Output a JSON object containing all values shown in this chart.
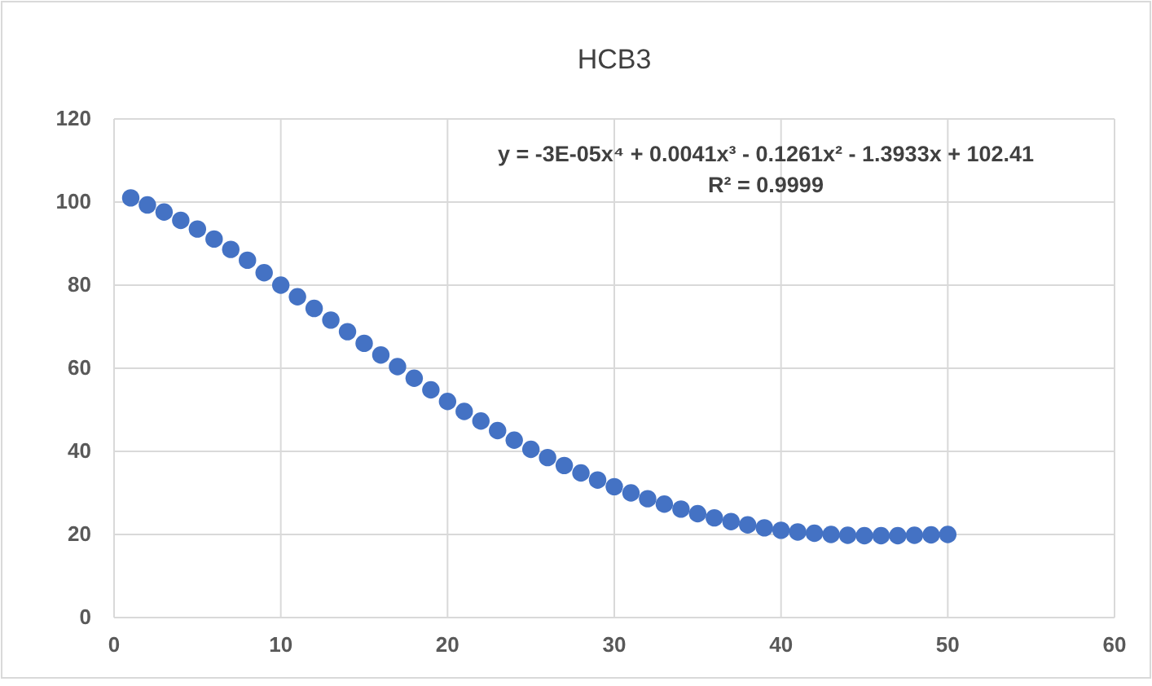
{
  "chart_data": {
    "type": "scatter",
    "title": "HCB3",
    "x": [
      1,
      2,
      3,
      4,
      5,
      6,
      7,
      8,
      9,
      10,
      11,
      12,
      13,
      14,
      15,
      16,
      17,
      18,
      19,
      20,
      21,
      22,
      23,
      24,
      25,
      26,
      27,
      28,
      29,
      30,
      31,
      32,
      33,
      34,
      35,
      36,
      37,
      38,
      39,
      40,
      41,
      42,
      43,
      44,
      45,
      46,
      47,
      48,
      49,
      50
    ],
    "series": [
      {
        "color": "#4472c4",
        "values": [
          101,
          99.3,
          97.6,
          95.6,
          93.5,
          91.1,
          88.6,
          86,
          83,
          80,
          77.2,
          74.4,
          71.6,
          68.8,
          66,
          63.2,
          60.4,
          57.6,
          54.8,
          52,
          49.6,
          47.3,
          45,
          42.7,
          40.5,
          38.5,
          36.6,
          34.8,
          33.1,
          31.5,
          30,
          28.6,
          27.3,
          26.1,
          25,
          24,
          23.1,
          22.3,
          21.6,
          21,
          20.6,
          20.3,
          20,
          19.8,
          19.7,
          19.7,
          19.7,
          19.8,
          19.9,
          20
        ]
      }
    ],
    "annotations": [
      "y = -3E-05x⁴ + 0.0041x³ - 0.1261x² - 1.3933x + 102.41",
      "R² = 0.9999"
    ],
    "xlim": [
      0,
      60
    ],
    "xticks": [
      0,
      10,
      20,
      30,
      40,
      50,
      60
    ],
    "ylim": [
      0,
      120
    ],
    "yticks": [
      0,
      20,
      40,
      60,
      80,
      100,
      120
    ],
    "grid": true,
    "marker": "circle"
  }
}
